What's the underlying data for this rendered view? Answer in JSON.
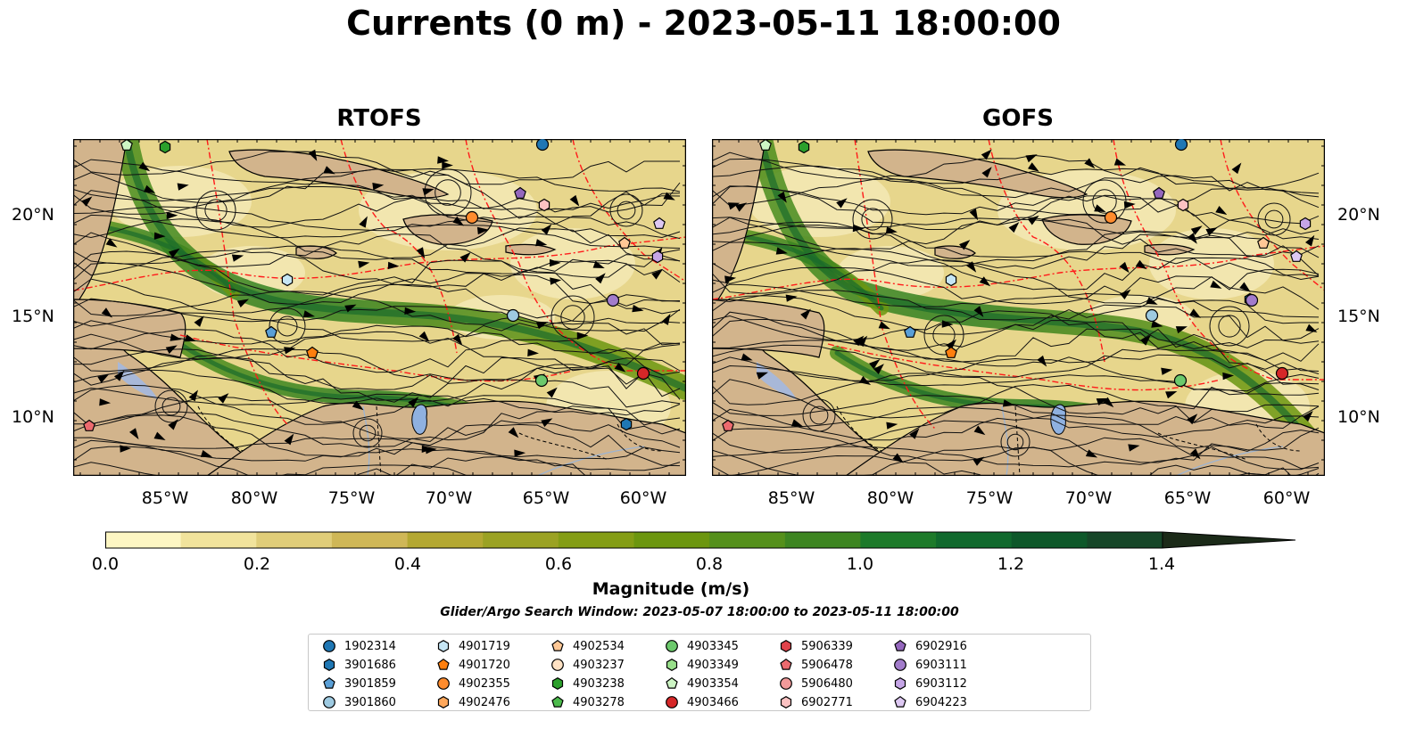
{
  "title": "Currents (0 m) - 2023-05-11 18:00:00",
  "panels": [
    {
      "title": "RTOFS"
    },
    {
      "title": "GOFS"
    }
  ],
  "lat_labels": [
    "20°N",
    "15°N",
    "10°N"
  ],
  "lon_labels": [
    "85°W",
    "80°W",
    "75°W",
    "70°W",
    "65°W",
    "60°W"
  ],
  "colorbar": {
    "label": "Magnitude (m/s)",
    "ticks": [
      "0.0",
      "0.2",
      "0.4",
      "0.6",
      "0.8",
      "1.0",
      "1.2",
      "1.4"
    ],
    "range": [
      0,
      1.6
    ],
    "extend": "max",
    "colors": [
      "#fdf6c3",
      "#f1e39c",
      "#e0cd79",
      "#cfb757",
      "#b4a832",
      "#9ba223",
      "#849d15",
      "#6c960f",
      "#55901b",
      "#3d8521",
      "#1d7a2a",
      "#10692d",
      "#0e582a",
      "#164628",
      "#1a3522",
      "#1b2a18"
    ]
  },
  "search_window": "Glider/Argo Search Window: 2023-05-07 18:00:00 to 2023-05-11 18:00:00",
  "legend": [
    {
      "id": "1902314",
      "shape": "circle",
      "color": "#1f77b4"
    },
    {
      "id": "3901686",
      "shape": "hexagon",
      "color": "#1f77b4"
    },
    {
      "id": "3901859",
      "shape": "pentagon",
      "color": "#5a9fd6"
    },
    {
      "id": "3901860",
      "shape": "circle",
      "color": "#9ecae1"
    },
    {
      "id": "4901719",
      "shape": "hexagon",
      "color": "#c6e6f5"
    },
    {
      "id": "4901720",
      "shape": "pentagon",
      "color": "#ff7f0e"
    },
    {
      "id": "4902355",
      "shape": "circle",
      "color": "#ff8c2e"
    },
    {
      "id": "4902476",
      "shape": "hexagon",
      "color": "#ffa85c"
    },
    {
      "id": "4902534",
      "shape": "pentagon",
      "color": "#ffc896"
    },
    {
      "id": "4903237",
      "shape": "circle",
      "color": "#ffe2c4"
    },
    {
      "id": "4903238",
      "shape": "hexagon",
      "color": "#2ca02c"
    },
    {
      "id": "4903278",
      "shape": "pentagon",
      "color": "#4cbb4c"
    },
    {
      "id": "4903345",
      "shape": "circle",
      "color": "#6cc96c"
    },
    {
      "id": "4903349",
      "shape": "hexagon",
      "color": "#98df8a"
    },
    {
      "id": "4903354",
      "shape": "pentagon",
      "color": "#cdf5c4"
    },
    {
      "id": "4903466",
      "shape": "circle",
      "color": "#d62728"
    },
    {
      "id": "5906339",
      "shape": "hexagon",
      "color": "#e0434b"
    },
    {
      "id": "5906478",
      "shape": "pentagon",
      "color": "#ec6a6e"
    },
    {
      "id": "5906480",
      "shape": "circle",
      "color": "#f29a9a"
    },
    {
      "id": "6902771",
      "shape": "hexagon",
      "color": "#fbc2c2"
    },
    {
      "id": "6902916",
      "shape": "pentagon",
      "color": "#9467bd"
    },
    {
      "id": "6903111",
      "shape": "circle",
      "color": "#a27ccb"
    },
    {
      "id": "6903112",
      "shape": "hexagon",
      "color": "#c5a5e6"
    },
    {
      "id": "6904223",
      "shape": "pentagon",
      "color": "#ddc8f2"
    }
  ]
}
